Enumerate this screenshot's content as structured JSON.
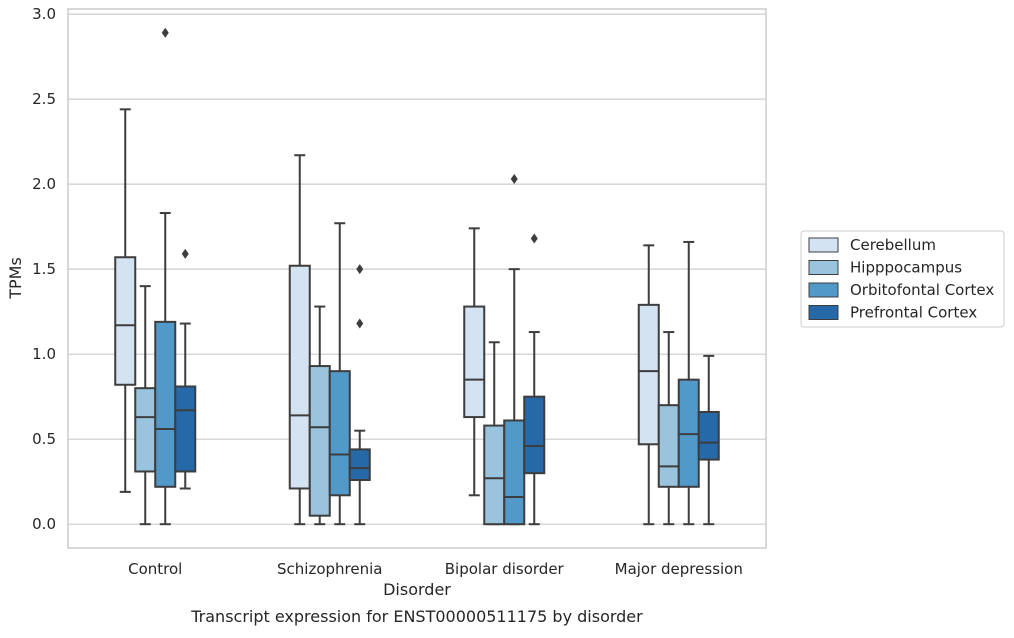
{
  "chart_data": {
    "type": "box",
    "xlabel": "Disorder",
    "ylabel": "TPMs",
    "caption": "Transcript expression for ENST00000511175 by disorder",
    "ylim": [
      -0.14,
      3.03
    ],
    "yticks": [
      "0.0",
      "0.5",
      "1.0",
      "1.5",
      "2.0",
      "2.5",
      "3.0"
    ],
    "grid": "horizontal",
    "legend_position": "right",
    "categories": [
      "Control",
      "Schizophrenia",
      "Bipolar disorder",
      "Major depression"
    ],
    "series": [
      {
        "name": "Cerebellum",
        "color": "#d3e3f2",
        "boxes": [
          {
            "whisker_low": 0.19,
            "q1": 0.82,
            "median": 1.17,
            "q3": 1.57,
            "whisker_high": 2.44,
            "outliers": []
          },
          {
            "whisker_low": 0.0,
            "q1": 0.21,
            "median": 0.64,
            "q3": 1.52,
            "whisker_high": 2.17,
            "outliers": []
          },
          {
            "whisker_low": 0.17,
            "q1": 0.63,
            "median": 0.85,
            "q3": 1.28,
            "whisker_high": 1.74,
            "outliers": []
          },
          {
            "whisker_low": 0.0,
            "q1": 0.47,
            "median": 0.9,
            "q3": 1.29,
            "whisker_high": 1.64,
            "outliers": []
          }
        ]
      },
      {
        "name": "Hipppocampus",
        "color": "#9ac4de",
        "boxes": [
          {
            "whisker_low": 0.0,
            "q1": 0.31,
            "median": 0.63,
            "q3": 0.8,
            "whisker_high": 1.4,
            "outliers": []
          },
          {
            "whisker_low": 0.0,
            "q1": 0.05,
            "median": 0.57,
            "q3": 0.93,
            "whisker_high": 1.28,
            "outliers": []
          },
          {
            "whisker_low": 0.0,
            "q1": 0.0,
            "median": 0.27,
            "q3": 0.58,
            "whisker_high": 1.07,
            "outliers": []
          },
          {
            "whisker_low": 0.0,
            "q1": 0.22,
            "median": 0.34,
            "q3": 0.7,
            "whisker_high": 1.13,
            "outliers": []
          }
        ]
      },
      {
        "name": "Orbitofontal Cortex",
        "color": "#5199c8",
        "boxes": [
          {
            "whisker_low": 0.0,
            "q1": 0.22,
            "median": 0.56,
            "q3": 1.19,
            "whisker_high": 1.83,
            "outliers": [
              2.89
            ]
          },
          {
            "whisker_low": 0.0,
            "q1": 0.17,
            "median": 0.41,
            "q3": 0.9,
            "whisker_high": 1.77,
            "outliers": []
          },
          {
            "whisker_low": 0.0,
            "q1": 0.0,
            "median": 0.16,
            "q3": 0.61,
            "whisker_high": 1.5,
            "outliers": [
              2.03
            ]
          },
          {
            "whisker_low": 0.0,
            "q1": 0.22,
            "median": 0.53,
            "q3": 0.85,
            "whisker_high": 1.66,
            "outliers": []
          }
        ]
      },
      {
        "name": "Prefrontal Cortex",
        "color": "#2669a8",
        "boxes": [
          {
            "whisker_low": 0.21,
            "q1": 0.31,
            "median": 0.67,
            "q3": 0.81,
            "whisker_high": 1.18,
            "outliers": [
              1.59
            ]
          },
          {
            "whisker_low": 0.0,
            "q1": 0.26,
            "median": 0.33,
            "q3": 0.44,
            "whisker_high": 0.55,
            "outliers": [
              1.18,
              1.5
            ]
          },
          {
            "whisker_low": 0.0,
            "q1": 0.3,
            "median": 0.46,
            "q3": 0.75,
            "whisker_high": 1.13,
            "outliers": [
              1.68
            ]
          },
          {
            "whisker_low": 0.0,
            "q1": 0.38,
            "median": 0.48,
            "q3": 0.66,
            "whisker_high": 0.99,
            "outliers": []
          }
        ]
      }
    ]
  }
}
